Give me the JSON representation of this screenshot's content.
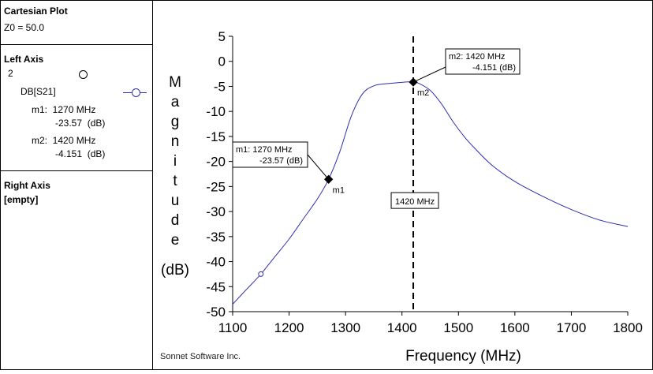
{
  "panel": {
    "plot_type": "Cartesian Plot",
    "z0": "Z0 = 50.0",
    "left_axis": {
      "title": "Left Axis",
      "number": "2",
      "trace_name": "DB[S21]",
      "m1_line1": "m1:  1270 MHz",
      "m1_line2": "-23.57  (dB)",
      "m2_line1": "m2:  1420 MHz",
      "m2_line2": "-4.151  (dB)"
    },
    "right_axis": {
      "title": "Right Axis",
      "value": "[empty]"
    }
  },
  "footer": "Sonnet Software Inc.",
  "chart_data": {
    "type": "line",
    "xlabel": "Frequency (MHz)",
    "ylabel_letters": [
      "M",
      "a",
      "g",
      "n",
      "i",
      "t",
      "u",
      "d",
      "e"
    ],
    "ylabel_unit": "(dB)",
    "xlim": [
      1100,
      1800
    ],
    "ylim": [
      -50,
      5
    ],
    "xticks": [
      1100,
      1200,
      1300,
      1400,
      1500,
      1600,
      1700,
      1800
    ],
    "yticks": [
      5,
      0,
      -5,
      -10,
      -15,
      -20,
      -25,
      -30,
      -35,
      -40,
      -45,
      -50
    ],
    "grid": false,
    "series": [
      {
        "name": "DB[S21]",
        "color": "#2f2fb0",
        "x": [
          1100,
          1125,
          1150,
          1175,
          1200,
          1225,
          1250,
          1270,
          1290,
          1310,
          1330,
          1350,
          1370,
          1390,
          1410,
          1420,
          1430,
          1450,
          1470,
          1490,
          1510,
          1530,
          1560,
          1600,
          1650,
          1700,
          1750,
          1800
        ],
        "y": [
          -48.5,
          -45.5,
          -42.5,
          -39.0,
          -35.5,
          -31.5,
          -27.5,
          -23.57,
          -18.0,
          -11.0,
          -6.5,
          -4.9,
          -4.5,
          -4.3,
          -4.1,
          -4.151,
          -4.4,
          -5.8,
          -8.5,
          -12.0,
          -15.0,
          -17.5,
          -20.8,
          -24.0,
          -27.0,
          -29.6,
          -31.7,
          -33.0
        ]
      }
    ],
    "open_marker": {
      "x": 1150,
      "y": -42.5
    },
    "markers": [
      {
        "id": "m1",
        "x": 1270,
        "y": -23.57,
        "box_line1": "m1:  1270 MHz",
        "box_line2": "-23.57  (dB)"
      },
      {
        "id": "m2",
        "x": 1420,
        "y": -4.151,
        "box_line1": "m2:  1420 MHz",
        "box_line2": "-4.151  (dB)"
      }
    ],
    "vertical_line": {
      "x": 1420,
      "label": "1420 MHz"
    }
  }
}
